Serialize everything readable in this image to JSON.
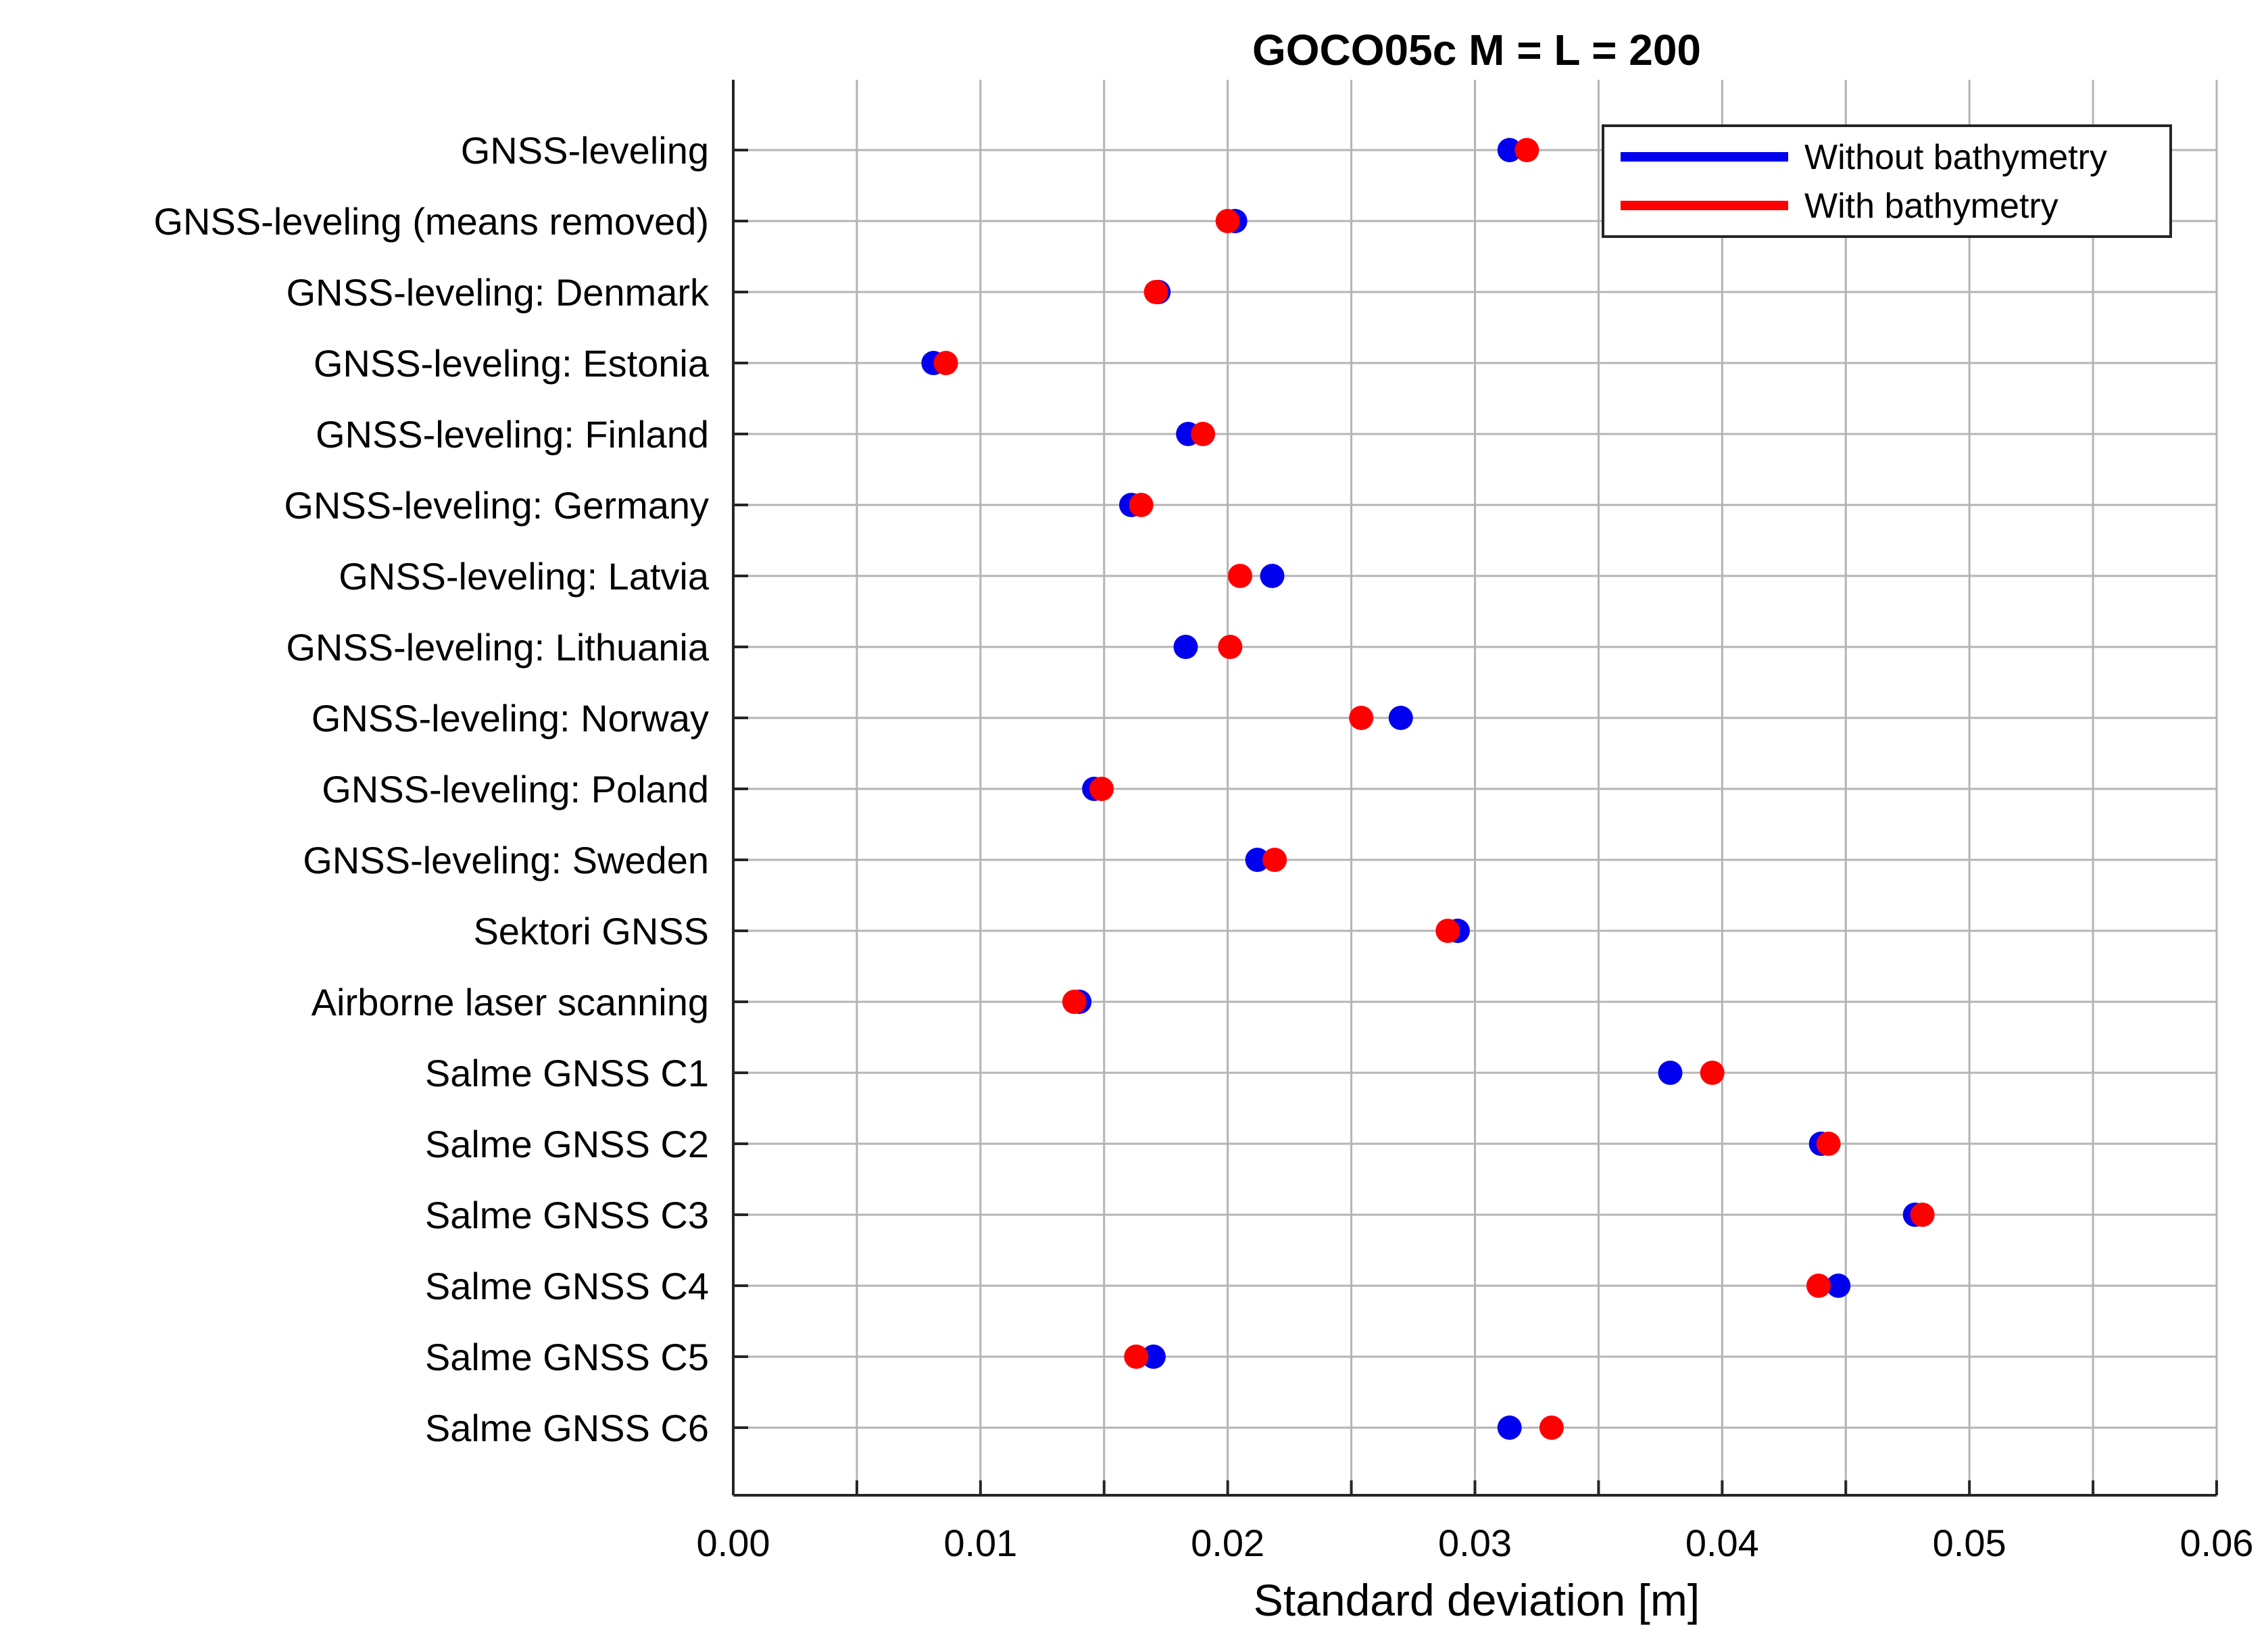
{
  "chart_data": {
    "type": "scatter",
    "title": "GOCO05c M = L = 200",
    "xlabel": "Standard deviation [m]",
    "ylabel": "",
    "xlim": [
      0,
      0.06
    ],
    "xticks": [
      "0.00",
      "0.01",
      "0.02",
      "0.03",
      "0.04",
      "0.05",
      "0.06"
    ],
    "grid": true,
    "legend_position": "top-right",
    "categories": [
      "GNSS-leveling",
      "GNSS-leveling (means removed)",
      "GNSS-leveling: Denmark",
      "GNSS-leveling: Estonia",
      "GNSS-leveling: Finland",
      "GNSS-leveling: Germany",
      "GNSS-leveling: Latvia",
      "GNSS-leveling: Lithuania",
      "GNSS-leveling: Norway",
      "GNSS-leveling: Poland",
      "GNSS-leveling: Sweden",
      "Sektori GNSS",
      "Airborne laser scanning",
      "Salme GNSS C1",
      "Salme GNSS C2",
      "Salme GNSS C3",
      "Salme GNSS C4",
      "Salme GNSS C5",
      "Salme GNSS C6"
    ],
    "series": [
      {
        "name": "Without bathymetry",
        "color": "#0000ee",
        "values": [
          0.0314,
          0.0203,
          0.0172,
          0.0081,
          0.0184,
          0.0161,
          0.0218,
          0.0183,
          0.027,
          0.0146,
          0.0212,
          0.0293,
          0.014,
          0.0379,
          0.044,
          0.0478,
          0.0447,
          0.017,
          0.0314
        ]
      },
      {
        "name": "With bathymetry",
        "color": "#ff0000",
        "values": [
          0.0321,
          0.02,
          0.0171,
          0.0086,
          0.019,
          0.0165,
          0.0205,
          0.0201,
          0.0254,
          0.0149,
          0.0219,
          0.0289,
          0.0138,
          0.0396,
          0.0443,
          0.0481,
          0.0439,
          0.0163,
          0.0331
        ]
      }
    ]
  }
}
